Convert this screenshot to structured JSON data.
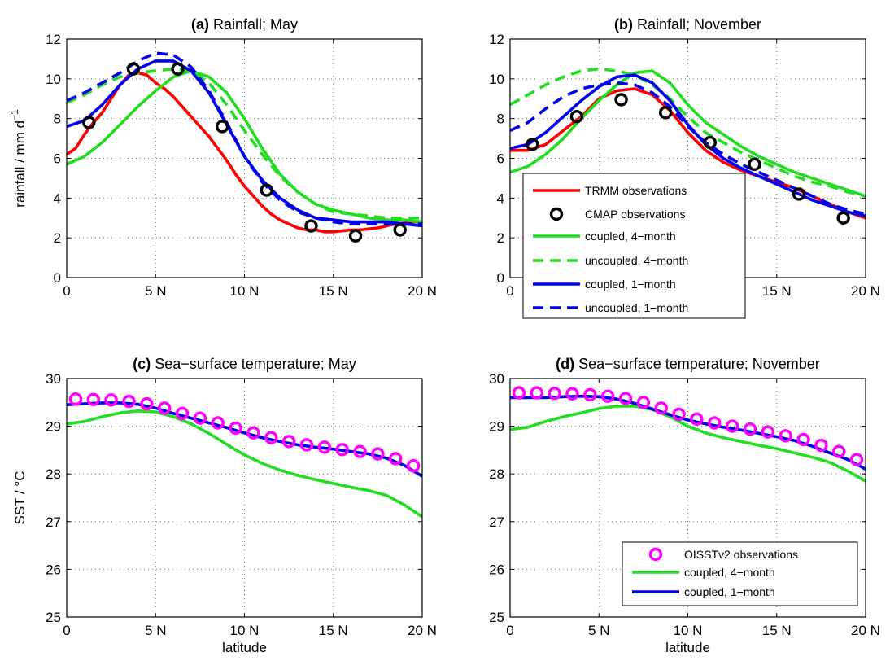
{
  "chart_data": [
    {
      "id": "a",
      "type": "line",
      "title_tag": "(a)",
      "title": "Rainfall; May",
      "ylabel": "rainfall / mm d",
      "ylabel_sup": "−1",
      "xlabel": "",
      "xlim": [
        0,
        20
      ],
      "ylim": [
        0,
        12
      ],
      "xticks": [
        0,
        5,
        10,
        15,
        20
      ],
      "xtick_labels": [
        "0",
        "5 N",
        "10 N",
        "15 N",
        "20 N"
      ],
      "yticks": [
        0,
        2,
        4,
        6,
        8,
        10,
        12
      ],
      "ytick_labels": [
        "0",
        "2",
        "4",
        "6",
        "8",
        "10",
        "12"
      ],
      "grid": true,
      "legend": null,
      "series": [
        {
          "name": "TRMM observations",
          "kind": "line",
          "color": "#ff0000",
          "dash": false,
          "x": [
            0,
            0.5,
            1,
            1.5,
            2,
            2.5,
            3,
            3.5,
            4,
            4.5,
            5,
            5.5,
            6,
            6.5,
            7,
            7.5,
            8,
            8.5,
            9,
            9.5,
            10,
            10.5,
            11,
            11.5,
            12,
            12.5,
            13,
            13.5,
            14,
            14.5,
            15,
            15.5,
            16,
            16.5,
            17,
            17.5,
            18,
            18.5,
            19,
            19.5,
            20
          ],
          "y": [
            6.2,
            6.5,
            7.2,
            7.8,
            8.3,
            9.0,
            9.7,
            10.2,
            10.3,
            10.2,
            9.8,
            9.5,
            9.1,
            8.6,
            8.1,
            7.6,
            7.1,
            6.5,
            5.9,
            5.2,
            4.6,
            4.1,
            3.6,
            3.2,
            2.9,
            2.7,
            2.5,
            2.4,
            2.4,
            2.3,
            2.3,
            2.35,
            2.4,
            2.4,
            2.45,
            2.5,
            2.6,
            2.7,
            2.75,
            2.8,
            2.8
          ]
        },
        {
          "name": "CMAP observations",
          "kind": "marker",
          "color": "#000000",
          "x": [
            1.25,
            3.75,
            6.25,
            8.75,
            11.25,
            13.75,
            16.25,
            18.75
          ],
          "y": [
            7.8,
            10.5,
            10.5,
            7.6,
            4.4,
            2.6,
            2.1,
            2.4
          ]
        },
        {
          "name": "coupled, 4−month",
          "kind": "line",
          "color": "#22dd22",
          "dash": false,
          "x": [
            0,
            1,
            2,
            3,
            4,
            5,
            6,
            7,
            8,
            9,
            10,
            11,
            12,
            13,
            14,
            15,
            16,
            17,
            18,
            19,
            20
          ],
          "y": [
            5.7,
            6.1,
            6.8,
            7.7,
            8.6,
            9.4,
            10.1,
            10.4,
            10.1,
            9.3,
            8.0,
            6.5,
            5.2,
            4.3,
            3.7,
            3.4,
            3.2,
            3.0,
            2.9,
            2.9,
            2.8
          ]
        },
        {
          "name": "uncoupled, 4−month",
          "kind": "line",
          "color": "#22dd22",
          "dash": true,
          "x": [
            0,
            1,
            2,
            3,
            4,
            5,
            6,
            7,
            8,
            9,
            10,
            11,
            12,
            13,
            14,
            15,
            16,
            17,
            18,
            19,
            20
          ],
          "y": [
            8.8,
            9.2,
            9.7,
            10.1,
            10.3,
            10.4,
            10.5,
            10.4,
            9.8,
            8.7,
            7.4,
            6.2,
            5.1,
            4.3,
            3.7,
            3.3,
            3.2,
            3.1,
            3.0,
            3.0,
            3.0
          ]
        },
        {
          "name": "coupled, 1−month",
          "kind": "line",
          "color": "#0000ee",
          "dash": false,
          "x": [
            0,
            1,
            2,
            3,
            4,
            5,
            6,
            7,
            8,
            9,
            10,
            11,
            12,
            13,
            14,
            15,
            16,
            17,
            18,
            19,
            20
          ],
          "y": [
            7.6,
            7.9,
            8.7,
            9.7,
            10.5,
            10.9,
            10.9,
            10.4,
            9.3,
            7.7,
            6.1,
            4.9,
            4.0,
            3.4,
            3.0,
            2.9,
            2.8,
            2.8,
            2.8,
            2.7,
            2.6
          ]
        },
        {
          "name": "uncoupled, 1−month",
          "kind": "line",
          "color": "#0000ee",
          "dash": true,
          "x": [
            0,
            1,
            2,
            3,
            4,
            5,
            6,
            7,
            8,
            9,
            10,
            11,
            12,
            13,
            14,
            15,
            16,
            17,
            18,
            19,
            20
          ],
          "y": [
            8.9,
            9.3,
            9.8,
            10.3,
            10.9,
            11.3,
            11.2,
            10.6,
            9.4,
            7.8,
            6.1,
            4.8,
            3.9,
            3.3,
            3.0,
            2.8,
            2.7,
            2.7,
            2.7,
            2.7,
            2.7
          ]
        }
      ]
    },
    {
      "id": "b",
      "type": "line",
      "title_tag": "(b)",
      "title": "Rainfall; November",
      "ylabel": "",
      "xlabel": "",
      "xlim": [
        0,
        20
      ],
      "ylim": [
        0,
        12
      ],
      "xticks": [
        0,
        5,
        10,
        15,
        20
      ],
      "xtick_labels": [
        "0",
        "5 N",
        "10 N",
        "15 N",
        "20 N"
      ],
      "yticks": [
        0,
        2,
        4,
        6,
        8,
        10,
        12
      ],
      "ytick_labels": [
        "0",
        "2",
        "4",
        "6",
        "8",
        "10",
        "12"
      ],
      "grid": true,
      "legend": "lower-left",
      "series": [
        {
          "name": "TRMM observations",
          "kind": "line",
          "color": "#ff0000",
          "dash": false,
          "x": [
            0,
            1,
            2,
            3,
            4,
            5,
            6,
            7,
            8,
            9,
            10,
            11,
            12,
            13,
            14,
            15,
            16,
            17,
            18,
            19,
            20
          ],
          "y": [
            6.4,
            6.4,
            6.7,
            7.4,
            8.1,
            9.0,
            9.4,
            9.5,
            9.2,
            8.4,
            7.3,
            6.4,
            5.8,
            5.4,
            5.1,
            4.8,
            4.5,
            4.1,
            3.7,
            3.3,
            3.0
          ]
        },
        {
          "name": "CMAP observations",
          "kind": "marker",
          "color": "#000000",
          "x": [
            1.25,
            3.75,
            6.25,
            8.75,
            11.25,
            13.75,
            16.25,
            18.75
          ],
          "y": [
            6.7,
            8.1,
            8.95,
            8.3,
            6.8,
            5.7,
            4.2,
            3.0
          ]
        },
        {
          "name": "coupled, 4−month",
          "kind": "line",
          "color": "#22dd22",
          "dash": false,
          "x": [
            0,
            1,
            2,
            3,
            4,
            5,
            6,
            7,
            8,
            9,
            10,
            11,
            12,
            13,
            14,
            15,
            16,
            17,
            18,
            19,
            20
          ],
          "y": [
            5.3,
            5.6,
            6.2,
            7.0,
            8.0,
            8.9,
            9.7,
            10.3,
            10.4,
            9.8,
            8.7,
            7.8,
            7.2,
            6.6,
            6.1,
            5.7,
            5.3,
            5.0,
            4.7,
            4.4,
            4.1
          ]
        },
        {
          "name": "uncoupled, 4−month",
          "kind": "line",
          "color": "#22dd22",
          "dash": true,
          "x": [
            0,
            1,
            2,
            3,
            4,
            5,
            6,
            7,
            8,
            9,
            10,
            11,
            12,
            13,
            14,
            15,
            16,
            17,
            18,
            19,
            20
          ],
          "y": [
            8.7,
            9.2,
            9.7,
            10.1,
            10.4,
            10.5,
            10.4,
            10.2,
            9.7,
            9.0,
            8.1,
            7.3,
            6.8,
            6.3,
            5.9,
            5.5,
            5.1,
            4.8,
            4.6,
            4.3,
            4.1
          ]
        },
        {
          "name": "coupled, 1−month",
          "kind": "line",
          "color": "#0000ee",
          "dash": false,
          "x": [
            0,
            1,
            2,
            3,
            4,
            5,
            6,
            7,
            8,
            9,
            10,
            11,
            12,
            13,
            14,
            15,
            16,
            17,
            18,
            19,
            20
          ],
          "y": [
            6.5,
            6.7,
            7.3,
            8.1,
            8.9,
            9.6,
            10.1,
            10.2,
            9.8,
            8.9,
            7.7,
            6.7,
            6.0,
            5.5,
            5.1,
            4.7,
            4.3,
            3.9,
            3.6,
            3.3,
            3.1
          ]
        },
        {
          "name": "uncoupled, 1−month",
          "kind": "line",
          "color": "#0000ee",
          "dash": true,
          "x": [
            0,
            1,
            2,
            3,
            4,
            5,
            6,
            7,
            8,
            9,
            10,
            11,
            12,
            13,
            14,
            15,
            16,
            17,
            18,
            19,
            20
          ],
          "y": [
            7.4,
            7.8,
            8.5,
            9.1,
            9.5,
            9.7,
            9.8,
            9.7,
            9.3,
            8.6,
            7.6,
            6.8,
            6.2,
            5.7,
            5.3,
            4.9,
            4.5,
            4.1,
            3.7,
            3.4,
            3.2
          ]
        }
      ]
    },
    {
      "id": "c",
      "type": "line",
      "title_tag": "(c)",
      "title": "Sea−surface temperature; May",
      "ylabel": "SST / °C",
      "xlabel": "latitude",
      "xlim": [
        0,
        20
      ],
      "ylim": [
        25,
        30
      ],
      "xticks": [
        0,
        5,
        10,
        15,
        20
      ],
      "xtick_labels": [
        "0",
        "5 N",
        "10 N",
        "15 N",
        "20 N"
      ],
      "yticks": [
        25,
        26,
        27,
        28,
        29,
        30
      ],
      "ytick_labels": [
        "25",
        "26",
        "27",
        "28",
        "29",
        "30"
      ],
      "grid": true,
      "legend": null,
      "series": [
        {
          "name": "OISSTv2 observations",
          "kind": "marker",
          "color": "#ff00ff",
          "x": [
            0.5,
            1.5,
            2.5,
            3.5,
            4.5,
            5.5,
            6.5,
            7.5,
            8.5,
            9.5,
            10.5,
            11.5,
            12.5,
            13.5,
            14.5,
            15.5,
            16.5,
            17.5,
            18.5,
            19.5
          ],
          "y": [
            29.57,
            29.56,
            29.55,
            29.52,
            29.47,
            29.38,
            29.27,
            29.17,
            29.07,
            28.96,
            28.86,
            28.76,
            28.68,
            28.61,
            28.56,
            28.51,
            28.47,
            28.42,
            28.32,
            28.17
          ]
        },
        {
          "name": "coupled, 4−month",
          "kind": "line",
          "color": "#22dd22",
          "dash": false,
          "x": [
            0,
            1,
            2,
            3,
            4,
            5,
            6,
            7,
            8,
            9,
            10,
            11,
            12,
            13,
            14,
            15,
            16,
            17,
            18,
            19,
            20
          ],
          "y": [
            29.05,
            29.1,
            29.2,
            29.28,
            29.32,
            29.3,
            29.2,
            29.05,
            28.85,
            28.62,
            28.4,
            28.22,
            28.08,
            27.97,
            27.88,
            27.8,
            27.72,
            27.65,
            27.55,
            27.35,
            27.1
          ]
        },
        {
          "name": "coupled, 1−month",
          "kind": "line",
          "color": "#0000ee",
          "dash": false,
          "x": [
            0,
            1,
            2,
            3,
            4,
            5,
            6,
            7,
            8,
            9,
            10,
            11,
            12,
            13,
            14,
            15,
            16,
            17,
            18,
            19,
            20
          ],
          "y": [
            29.45,
            29.47,
            29.49,
            29.49,
            29.46,
            29.38,
            29.27,
            29.17,
            29.07,
            28.97,
            28.86,
            28.76,
            28.68,
            28.61,
            28.56,
            28.52,
            28.47,
            28.42,
            28.33,
            28.18,
            27.95
          ]
        }
      ]
    },
    {
      "id": "d",
      "type": "line",
      "title_tag": "(d)",
      "title": "Sea−surface temperature; November",
      "ylabel": "",
      "xlabel": "latitude",
      "xlim": [
        0,
        20
      ],
      "ylim": [
        25,
        30
      ],
      "xticks": [
        0,
        5,
        10,
        15,
        20
      ],
      "xtick_labels": [
        "0",
        "5 N",
        "10 N",
        "15 N",
        "20 N"
      ],
      "yticks": [
        25,
        26,
        27,
        28,
        29,
        30
      ],
      "ytick_labels": [
        "25",
        "26",
        "27",
        "28",
        "29",
        "30"
      ],
      "grid": true,
      "legend": "lower-right",
      "series": [
        {
          "name": "OISSTv2 observations",
          "kind": "marker",
          "color": "#ff00ff",
          "x": [
            0.5,
            1.5,
            2.5,
            3.5,
            4.5,
            5.5,
            6.5,
            7.5,
            8.5,
            9.5,
            10.5,
            11.5,
            12.5,
            13.5,
            14.5,
            15.5,
            16.5,
            17.5,
            18.5,
            19.5
          ],
          "y": [
            29.7,
            29.7,
            29.69,
            29.68,
            29.66,
            29.63,
            29.58,
            29.5,
            29.38,
            29.25,
            29.15,
            29.07,
            29.0,
            28.94,
            28.88,
            28.8,
            28.72,
            28.6,
            28.47,
            28.3
          ]
        },
        {
          "name": "coupled, 4−month",
          "kind": "line",
          "color": "#22dd22",
          "dash": false,
          "x": [
            0,
            1,
            2,
            3,
            4,
            5,
            6,
            7,
            8,
            9,
            10,
            11,
            12,
            13,
            14,
            15,
            16,
            17,
            18,
            19,
            20
          ],
          "y": [
            28.93,
            28.98,
            29.1,
            29.2,
            29.28,
            29.37,
            29.42,
            29.42,
            29.35,
            29.2,
            29.0,
            28.86,
            28.76,
            28.68,
            28.6,
            28.53,
            28.44,
            28.35,
            28.24,
            28.06,
            27.85
          ]
        },
        {
          "name": "coupled, 1−month",
          "kind": "line",
          "color": "#0000ee",
          "dash": false,
          "x": [
            0,
            1,
            2,
            3,
            4,
            5,
            6,
            7,
            8,
            9,
            10,
            11,
            12,
            13,
            14,
            15,
            16,
            17,
            18,
            19,
            20
          ],
          "y": [
            29.6,
            29.6,
            29.6,
            29.62,
            29.63,
            29.62,
            29.57,
            29.48,
            29.36,
            29.24,
            29.13,
            29.05,
            28.98,
            28.92,
            28.85,
            28.78,
            28.7,
            28.58,
            28.44,
            28.3,
            28.1
          ]
        }
      ]
    }
  ]
}
